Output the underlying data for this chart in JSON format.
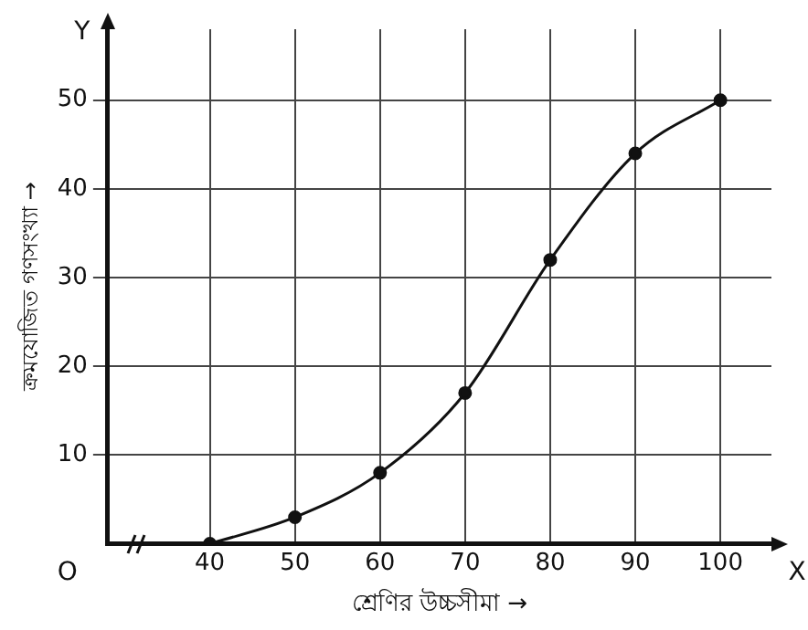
{
  "chart_data": {
    "type": "line",
    "xlabel": "শ্রেণির উচ্চসীমা →",
    "ylabel": "ক্রমযোজিত গণসংখ্যা →",
    "x": [
      40,
      50,
      60,
      70,
      80,
      90,
      100
    ],
    "series": [
      {
        "color": "#111111",
        "values": [
          0,
          3,
          8,
          17,
          32,
          44,
          50
        ]
      }
    ],
    "xlim": [
      28,
      106
    ],
    "xticks": [
      40,
      50,
      60,
      70,
      80,
      90,
      100
    ],
    "ylim": [
      0,
      58
    ],
    "yticks": [
      10,
      20,
      30,
      40,
      50
    ],
    "grid": true,
    "legend": false,
    "marker": "circle",
    "line_style": "solid",
    "annotations": [
      "O",
      "X",
      "Y"
    ]
  }
}
